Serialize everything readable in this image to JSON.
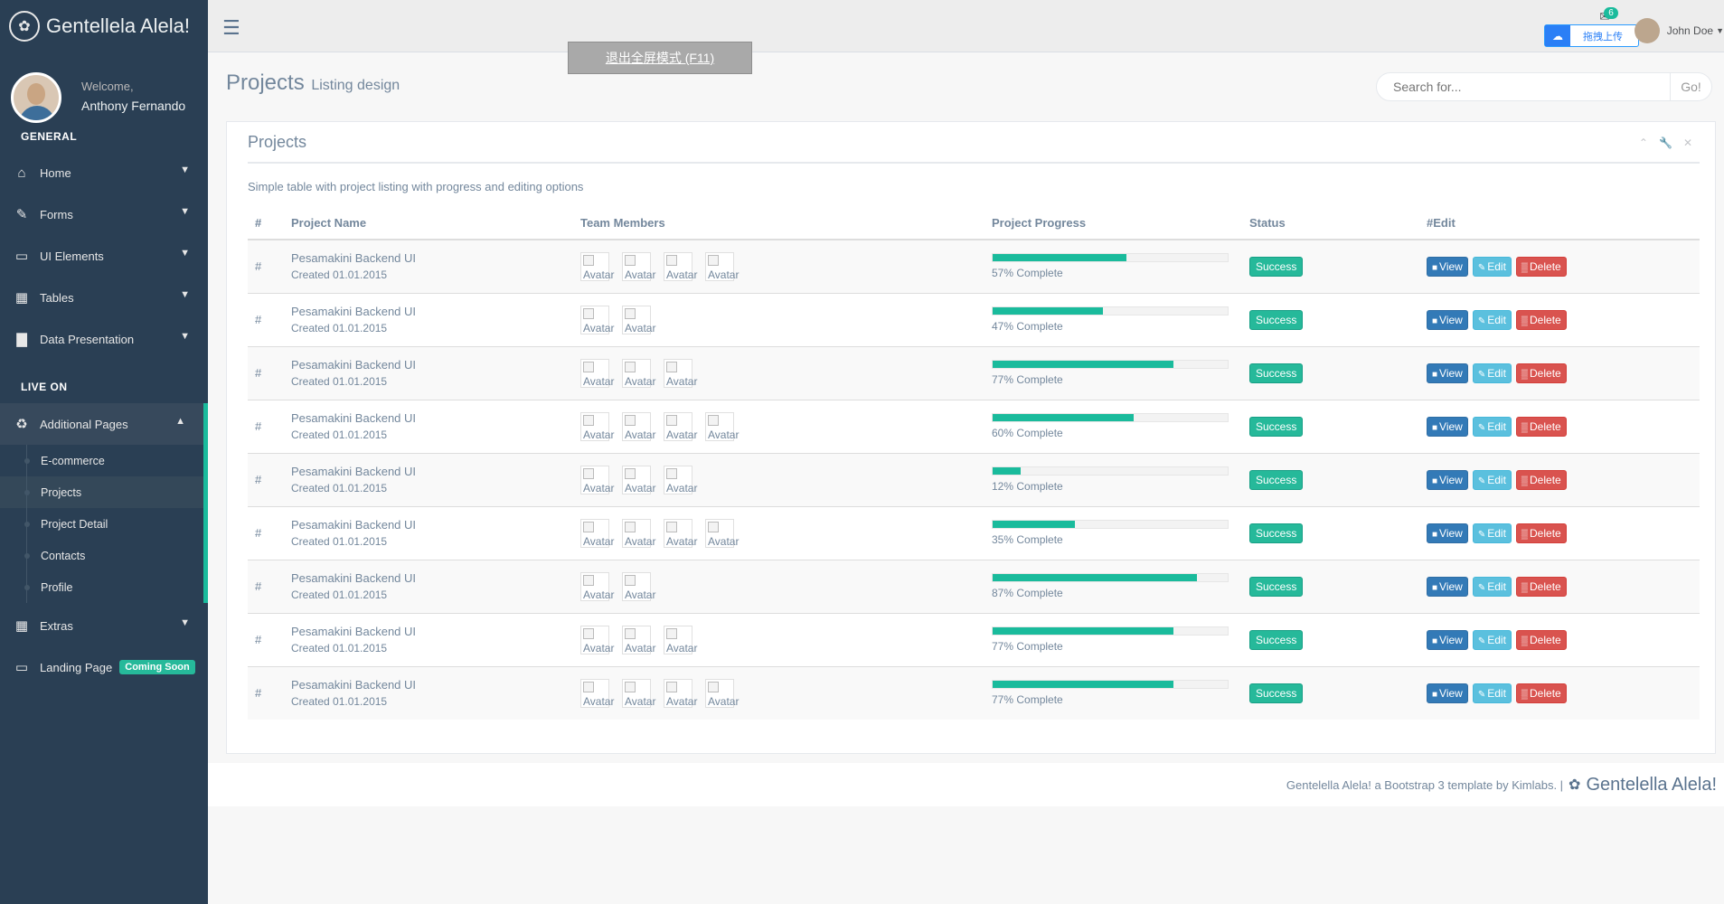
{
  "brand": {
    "title": "Gentellela Alela!"
  },
  "profile": {
    "welcome": "Welcome,",
    "name": "Anthony Fernando"
  },
  "sidebar": {
    "section_general": "GENERAL",
    "section_live": "LIVE ON",
    "menu": [
      {
        "label": "Home",
        "icon": "home-icon"
      },
      {
        "label": "Forms",
        "icon": "edit-icon"
      },
      {
        "label": "UI Elements",
        "icon": "desktop-icon"
      },
      {
        "label": "Tables",
        "icon": "table-icon"
      },
      {
        "label": "Data Presentation",
        "icon": "bar-chart-icon"
      }
    ],
    "additional": {
      "label": "Additional Pages",
      "icon": "bug-icon"
    },
    "submenu": [
      "E-commerce",
      "Projects",
      "Project Detail",
      "Contacts",
      "Profile"
    ],
    "extras": {
      "label": "Extras",
      "icon": "windows-icon"
    },
    "landing": {
      "label": "Landing Page",
      "badge": "Coming Soon",
      "icon": "laptop-icon"
    }
  },
  "topnav": {
    "fullscreen_tip": "退出全屏模式 (F11)",
    "notification_count": "6",
    "upload_label": "拖拽上传",
    "user_name": "John Doe"
  },
  "page": {
    "title": "Projects",
    "subtitle": "Listing design"
  },
  "search": {
    "placeholder": "Search for...",
    "button": "Go!"
  },
  "panel": {
    "title": "Projects",
    "description": "Simple table with project listing with progress and editing options",
    "columns": [
      "#",
      "Project Name",
      "Team Members",
      "Project Progress",
      "Status",
      "#Edit"
    ],
    "rows": [
      {
        "hash": "#",
        "name": "Pesamakini Backend UI",
        "created": "Created 01.01.2015",
        "members": 4,
        "progress": 57,
        "progress_text": "57% Complete",
        "status": "Success"
      },
      {
        "hash": "#",
        "name": "Pesamakini Backend UI",
        "created": "Created 01.01.2015",
        "members": 2,
        "progress": 47,
        "progress_text": "47% Complete",
        "status": "Success"
      },
      {
        "hash": "#",
        "name": "Pesamakini Backend UI",
        "created": "Created 01.01.2015",
        "members": 3,
        "progress": 77,
        "progress_text": "77% Complete",
        "status": "Success"
      },
      {
        "hash": "#",
        "name": "Pesamakini Backend UI",
        "created": "Created 01.01.2015",
        "members": 4,
        "progress": 60,
        "progress_text": "60% Complete",
        "status": "Success"
      },
      {
        "hash": "#",
        "name": "Pesamakini Backend UI",
        "created": "Created 01.01.2015",
        "members": 3,
        "progress": 12,
        "progress_text": "12% Complete",
        "status": "Success"
      },
      {
        "hash": "#",
        "name": "Pesamakini Backend UI",
        "created": "Created 01.01.2015",
        "members": 4,
        "progress": 35,
        "progress_text": "35% Complete",
        "status": "Success"
      },
      {
        "hash": "#",
        "name": "Pesamakini Backend UI",
        "created": "Created 01.01.2015",
        "members": 2,
        "progress": 87,
        "progress_text": "87% Complete",
        "status": "Success"
      },
      {
        "hash": "#",
        "name": "Pesamakini Backend UI",
        "created": "Created 01.01.2015",
        "members": 3,
        "progress": 77,
        "progress_text": "77% Complete",
        "status": "Success"
      },
      {
        "hash": "#",
        "name": "Pesamakini Backend UI",
        "created": "Created 01.01.2015",
        "members": 4,
        "progress": 77,
        "progress_text": "77% Complete",
        "status": "Success"
      }
    ],
    "avatar_alt": "Avatar",
    "actions": {
      "view": "View",
      "edit": "Edit",
      "delete": "Delete"
    }
  },
  "footer": {
    "text": "Gentelella Alela! a Bootstrap 3 template by Kimlabs. |",
    "brand": "Gentelella Alela!"
  },
  "colors": {
    "sidebar": "#2A3F54",
    "accent": "#1ABB9C",
    "view": "#337AB7",
    "edit": "#5BC0DE",
    "delete": "#D9534F"
  }
}
